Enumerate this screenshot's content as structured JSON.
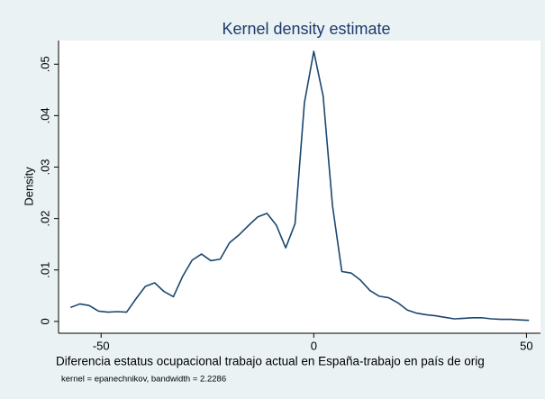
{
  "chart_data": {
    "type": "line",
    "title": "Kernel density estimate",
    "x_label": "Diferencia estatus ocupacional trabajo actual en España-trabajo en país de orig",
    "y_label": "Density",
    "note": "kernel = epanechnikov, bandwidth = 2.2286",
    "x": [
      -57.2,
      -55,
      -52.8,
      -50.6,
      -48.4,
      -46.2,
      -44,
      -41.8,
      -39.6,
      -37.4,
      -35.2,
      -33,
      -30.8,
      -28.6,
      -26.4,
      -24.2,
      -22,
      -19.8,
      -17.6,
      -15.4,
      -13.2,
      -11,
      -8.8,
      -6.6,
      -4.4,
      -2.2,
      0,
      2.2,
      4.4,
      6.6,
      8.8,
      11,
      13.2,
      15.4,
      17.6,
      19.8,
      22,
      24.2,
      26.4,
      28.6,
      30.8,
      33,
      35.2,
      37.4,
      39.6,
      41.8,
      44,
      46.2,
      48.4,
      50.6
    ],
    "series": [
      {
        "name": "Density",
        "color": "#1a476f",
        "values": [
          0.0027,
          0.0034,
          0.0031,
          0.002,
          0.0018,
          0.0019,
          0.0018,
          0.0044,
          0.0068,
          0.0075,
          0.0058,
          0.0048,
          0.0088,
          0.0119,
          0.0131,
          0.0118,
          0.0121,
          0.0153,
          0.0168,
          0.0186,
          0.0203,
          0.021,
          0.0187,
          0.0143,
          0.019,
          0.0425,
          0.0525,
          0.0438,
          0.0225,
          0.0097,
          0.0094,
          0.008,
          0.006,
          0.0049,
          0.0046,
          0.0036,
          0.0022,
          0.0016,
          0.0013,
          0.0011,
          0.0008,
          0.0005,
          0.0006,
          0.0007,
          0.0007,
          0.0005,
          0.0004,
          0.0004,
          0.0003,
          0.0002
        ]
      }
    ],
    "xlim": [
      -60,
      53.3
    ],
    "xticks": [
      -50,
      0,
      50
    ],
    "ylim": [
      -0.0023,
      0.0546
    ],
    "yticks": [
      0,
      {
        "value": 0.01,
        "label": ".01"
      },
      {
        "value": 0.02,
        "label": ".02"
      },
      {
        "value": 0.03,
        "label": ".03"
      },
      {
        "value": 0.04,
        "label": ".04"
      },
      {
        "value": 0.05,
        "label": ".05"
      }
    ],
    "grid": false
  }
}
